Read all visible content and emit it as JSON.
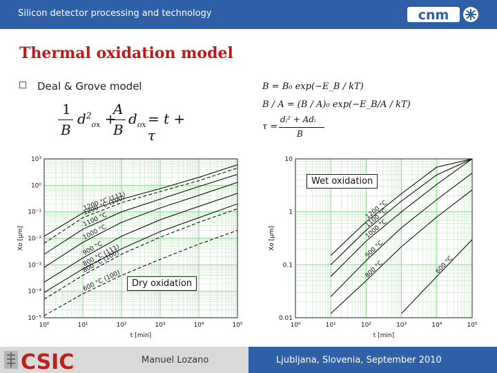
{
  "header": {
    "title": "Silicon detector processing and technology",
    "logo_text": "cnm"
  },
  "slide": {
    "title": "Thermal oxidation model",
    "bullet": "Deal & Grove model"
  },
  "equations": {
    "main_lhs_num1": "1",
    "main_lhs_den1": "B",
    "main_lhs_num2": "A",
    "main_lhs_den2": "B",
    "main_rhs": "= t + τ",
    "eq_B": "B = B₀ exp(−E_B / kT)",
    "eq_BA": "B / A = (B / A)₀ exp(−E_B/A / kT)",
    "eq_tau_lhs": "τ =",
    "eq_tau_num": "dᵢ² + Adᵢ",
    "eq_tau_den": "B"
  },
  "footer": {
    "institution": "CSIC",
    "presenter": "Manuel Lozano",
    "event": "Ljubljana, Slovenia, September 2010"
  },
  "chart_data": [
    {
      "type": "line",
      "annotation": "Dry oxidation",
      "xlabel": "t [min]",
      "ylabel": "Xo [µm]",
      "xscale": "log",
      "yscale": "log",
      "xlim": [
        1,
        100000
      ],
      "ylim": [
        1e-05,
        10
      ],
      "x_ticks": [
        "10⁰",
        "10¹",
        "10²",
        "10³",
        "10⁴",
        "10⁵"
      ],
      "y_ticks": [
        "10⁻⁵",
        "10⁻⁴",
        "10⁻³",
        "10⁻²",
        "10⁻¹",
        "10⁰",
        "10¹"
      ],
      "grid": true,
      "series": [
        {
          "name": "1200 °C (100)",
          "dashed": true,
          "x": [
            1,
            10,
            100,
            1000,
            10000,
            100000
          ],
          "y": [
            0.0065,
            0.06,
            0.22,
            0.58,
            1.5,
            4.5
          ]
        },
        {
          "name": "1200 °C (111)",
          "dashed": false,
          "x": [
            1,
            10,
            100,
            1000,
            10000,
            100000
          ],
          "y": [
            0.012,
            0.09,
            0.3,
            0.75,
            2.0,
            6.0
          ]
        },
        {
          "name": "1100 °C",
          "dashed": false,
          "x": [
            1,
            10,
            100,
            1000,
            10000,
            100000
          ],
          "y": [
            0.0025,
            0.022,
            0.1,
            0.3,
            0.9,
            2.6
          ]
        },
        {
          "name": "1000 °C",
          "dashed": false,
          "x": [
            1,
            10,
            100,
            1000,
            10000,
            100000
          ],
          "y": [
            0.0008,
            0.007,
            0.04,
            0.14,
            0.42,
            1.3
          ]
        },
        {
          "name": "900 °C",
          "dashed": false,
          "x": [
            1,
            10,
            100,
            1000,
            10000,
            100000
          ],
          "y": [
            0.00022,
            0.0018,
            0.012,
            0.05,
            0.16,
            0.5
          ]
        },
        {
          "name": "800 °C (111)",
          "dashed": false,
          "x": [
            1,
            10,
            100,
            1000,
            10000,
            100000
          ],
          "y": [
            9e-05,
            0.0007,
            0.004,
            0.018,
            0.06,
            0.2
          ]
        },
        {
          "name": "800 °C (100)",
          "dashed": true,
          "x": [
            1,
            10,
            100,
            1000,
            10000,
            100000
          ],
          "y": [
            5e-05,
            0.0004,
            0.0025,
            0.011,
            0.04,
            0.13
          ]
        },
        {
          "name": "600 °C (100)",
          "dashed": true,
          "x": [
            1,
            10,
            100,
            1000,
            10000,
            100000
          ],
          "y": [
            1.2e-05,
            8e-05,
            0.0004,
            0.0016,
            0.006,
            0.02
          ]
        }
      ]
    },
    {
      "type": "line",
      "annotation": "Wet oxidation",
      "xlabel": "t [min]",
      "ylabel": "Xo [µm]",
      "xscale": "log",
      "yscale": "log",
      "xlim": [
        1,
        100000
      ],
      "ylim": [
        0.01,
        10
      ],
      "x_ticks": [
        "10⁰",
        "10¹",
        "10²",
        "10³",
        "10⁴",
        "10⁵"
      ],
      "y_ticks": [
        "0.01",
        "0.1",
        "1",
        "10"
      ],
      "grid": true,
      "series": [
        {
          "name": "1200 °C",
          "dashed": false,
          "x": [
            10,
            100,
            1000,
            10000,
            100000
          ],
          "y": [
            0.15,
            0.65,
            2.2,
            7.0,
            10
          ]
        },
        {
          "name": "1100 °C",
          "dashed": false,
          "x": [
            10,
            100,
            1000,
            10000,
            100000
          ],
          "y": [
            0.1,
            0.45,
            1.6,
            5.0,
            10
          ]
        },
        {
          "name": "1000 °C",
          "dashed": false,
          "x": [
            10,
            100,
            1000,
            10000,
            100000
          ],
          "y": [
            0.06,
            0.28,
            1.0,
            3.3,
            10
          ]
        },
        {
          "name": "900 °C",
          "dashed": false,
          "x": [
            10,
            100,
            1000,
            10000,
            100000
          ],
          "y": [
            0.025,
            0.12,
            0.5,
            1.7,
            5.4
          ]
        },
        {
          "name": "800 °C",
          "dashed": false,
          "x": [
            10,
            100,
            1000,
            10000,
            100000
          ],
          "y": [
            0.012,
            0.05,
            0.22,
            0.8,
            2.6
          ]
        },
        {
          "name": "600 °C",
          "dashed": false,
          "x": [
            1000,
            10000,
            100000
          ],
          "y": [
            0.012,
            0.06,
            0.3
          ]
        }
      ]
    }
  ]
}
